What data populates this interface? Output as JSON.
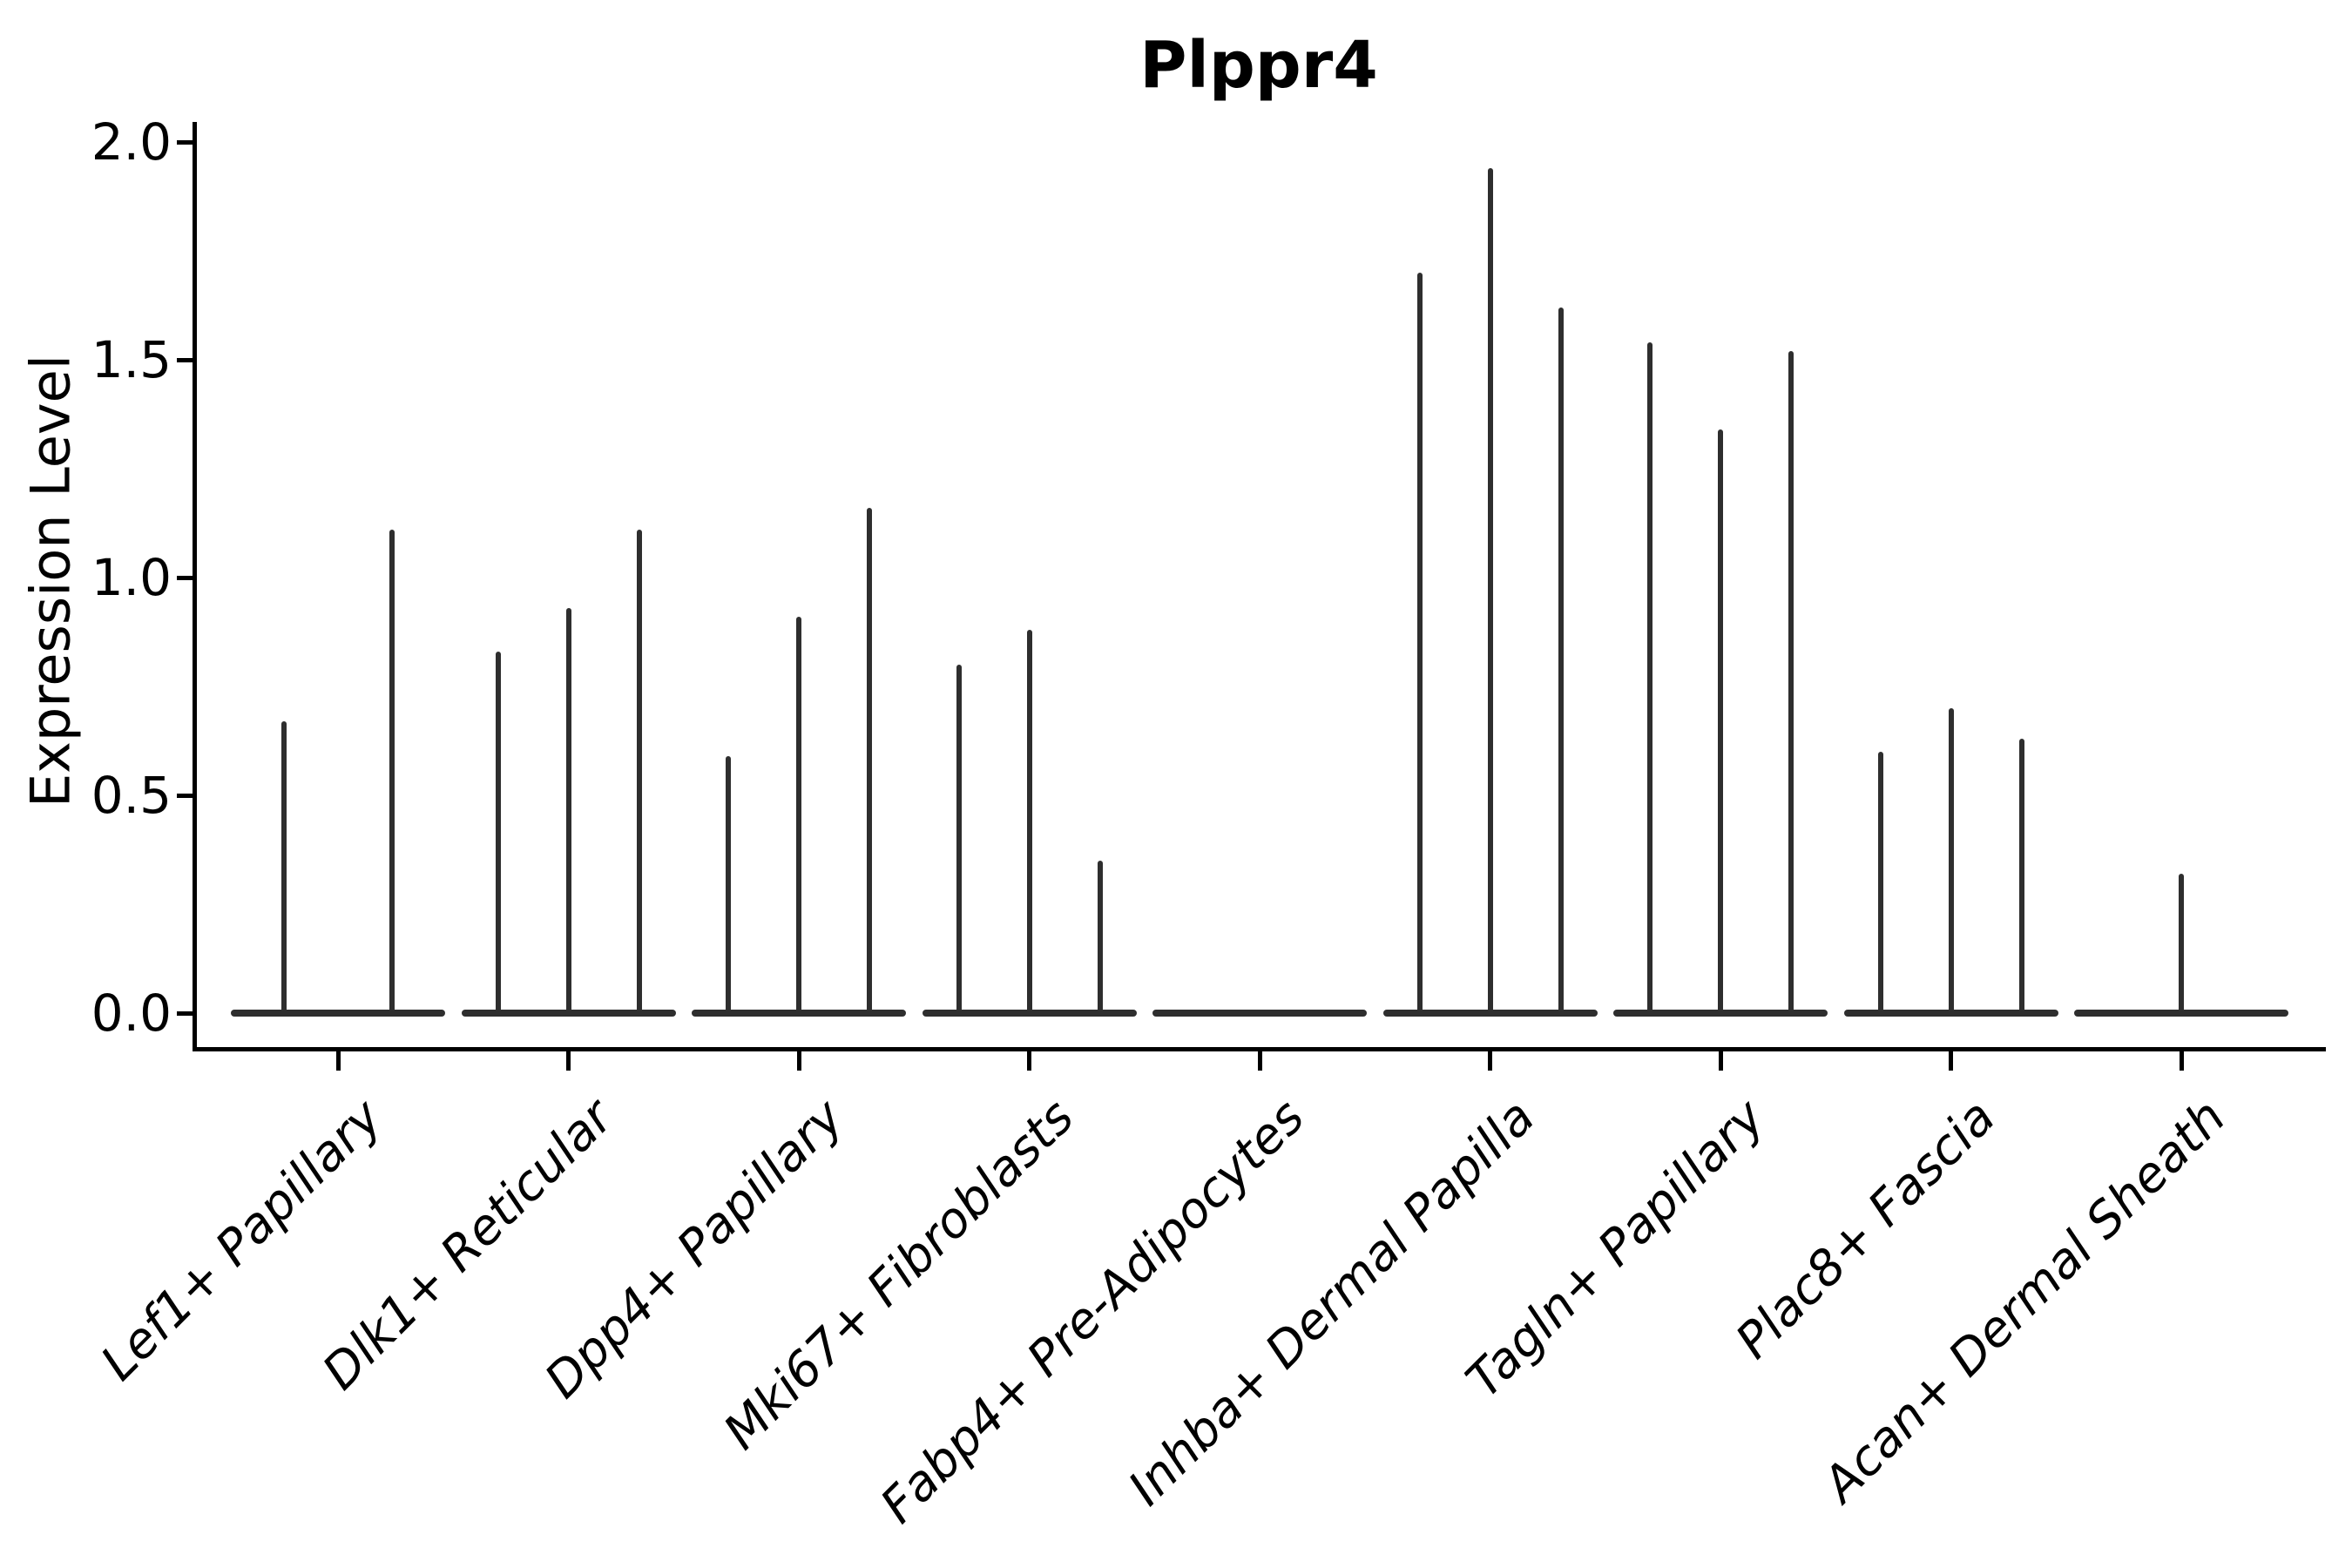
{
  "title": "Plppr4",
  "y_axis": {
    "label": "Expression Level",
    "tick_labels": [
      "0.0",
      "0.5",
      "1.0",
      "1.5",
      "2.0"
    ]
  },
  "chart_data": {
    "type": "violin",
    "title": "Plppr4",
    "xlabel": "",
    "ylabel": "Expression Level",
    "ylim": [
      0,
      2.04
    ],
    "yticks": [
      0.0,
      0.5,
      1.0,
      1.5,
      2.0
    ],
    "grid": false,
    "legend": "none",
    "background": "#ffffff",
    "categories": [
      "Lef1+ Papillary",
      "Dlk1+ Reticular",
      "Dpp4+ Papillary",
      "Mki67+ Fibroblasts",
      "Fabp4+ Pre-Adipocytes",
      "Inhba+ Dermal Papilla",
      "Tagln+ Papillary",
      "Plac8+ Fascia",
      "Acan+ Dermal Sheath"
    ],
    "violins": [
      {
        "category": "Lef1+ Papillary",
        "spikes": [
          {
            "offset": -62,
            "peak": 0.67
          },
          {
            "offset": 62,
            "peak": 1.11
          }
        ]
      },
      {
        "category": "Dlk1+ Reticular",
        "spikes": [
          {
            "offset": -81,
            "peak": 0.83
          },
          {
            "offset": 0,
            "peak": 0.93
          },
          {
            "offset": 81,
            "peak": 1.11
          }
        ]
      },
      {
        "category": "Dpp4+ Papillary",
        "spikes": [
          {
            "offset": -81,
            "peak": 0.59
          },
          {
            "offset": 0,
            "peak": 0.91
          },
          {
            "offset": 81,
            "peak": 1.16
          }
        ]
      },
      {
        "category": "Mki67+ Fibroblasts",
        "spikes": [
          {
            "offset": -81,
            "peak": 0.8
          },
          {
            "offset": 0,
            "peak": 0.88
          },
          {
            "offset": 81,
            "peak": 0.35
          }
        ]
      },
      {
        "category": "Fabp4+ Pre-Adipocytes",
        "spikes": []
      },
      {
        "category": "Inhba+ Dermal Papilla",
        "spikes": [
          {
            "offset": -81,
            "peak": 1.7
          },
          {
            "offset": 0,
            "peak": 1.94
          },
          {
            "offset": 81,
            "peak": 1.62
          }
        ]
      },
      {
        "category": "Tagln+ Papillary",
        "spikes": [
          {
            "offset": -81,
            "peak": 1.54
          },
          {
            "offset": 0,
            "peak": 1.34
          },
          {
            "offset": 81,
            "peak": 1.52
          }
        ]
      },
      {
        "category": "Plac8+ Fascia",
        "spikes": [
          {
            "offset": -81,
            "peak": 0.6
          },
          {
            "offset": 0,
            "peak": 0.7
          },
          {
            "offset": 81,
            "peak": 0.63
          }
        ]
      },
      {
        "category": "Acan+ Dermal Sheath",
        "spikes": [
          {
            "offset": 0,
            "peak": 0.32
          }
        ]
      }
    ],
    "colors": {
      "violin_line": "#2e2e2e",
      "axis": "#000000",
      "text": "#000000",
      "background": "#ffffff"
    }
  }
}
